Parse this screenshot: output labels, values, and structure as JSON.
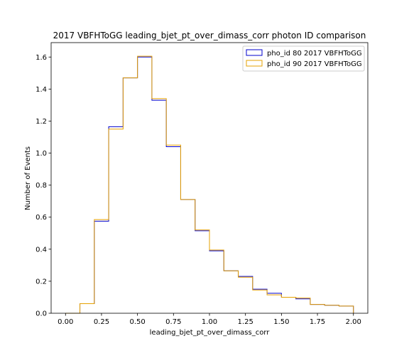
{
  "chart_data": {
    "type": "histogram",
    "title": "2017 VBFHToGG leading_bjet_pt_over_dimass_corr photon ID comparison",
    "xlabel": "leading_bjet_pt_over_dimass_corr",
    "ylabel": "Number of Events",
    "xlim": [
      -0.1,
      2.1
    ],
    "ylim": [
      0,
      1.69
    ],
    "xticks": [
      0.0,
      0.25,
      0.5,
      0.75,
      1.0,
      1.25,
      1.5,
      1.75,
      2.0
    ],
    "xtick_labels": [
      "0.00",
      "0.25",
      "0.50",
      "0.75",
      "1.00",
      "1.25",
      "1.50",
      "1.75",
      "2.00"
    ],
    "yticks": [
      0.0,
      0.2,
      0.4,
      0.6,
      0.8,
      1.0,
      1.2,
      1.4,
      1.6
    ],
    "ytick_labels": [
      "0.0",
      "0.2",
      "0.4",
      "0.6",
      "0.8",
      "1.0",
      "1.2",
      "1.4",
      "1.6"
    ],
    "bin_edges": [
      0.0,
      0.1,
      0.2,
      0.3,
      0.4,
      0.5,
      0.6,
      0.7,
      0.8,
      0.9,
      1.0,
      1.1,
      1.2,
      1.3,
      1.4,
      1.5,
      1.6,
      1.7,
      1.8,
      1.9,
      2.0
    ],
    "series": [
      {
        "name": "pho_id 80 2017 VBFHToGG",
        "color": "#0000cc",
        "values": [
          0.0,
          0.06,
          0.575,
          1.165,
          1.47,
          1.6,
          1.33,
          1.04,
          0.71,
          0.515,
          0.39,
          0.265,
          0.23,
          0.15,
          0.125,
          0.1,
          0.09,
          0.055,
          0.05,
          0.045
        ]
      },
      {
        "name": "pho_id 90 2017 VBFHToGG",
        "color": "#e6a100",
        "values": [
          0.0,
          0.06,
          0.585,
          1.15,
          1.47,
          1.605,
          1.34,
          1.05,
          0.71,
          0.52,
          0.395,
          0.265,
          0.225,
          0.145,
          0.115,
          0.1,
          0.095,
          0.055,
          0.05,
          0.045
        ]
      }
    ],
    "legend_position": "top-right",
    "grid": false
  }
}
